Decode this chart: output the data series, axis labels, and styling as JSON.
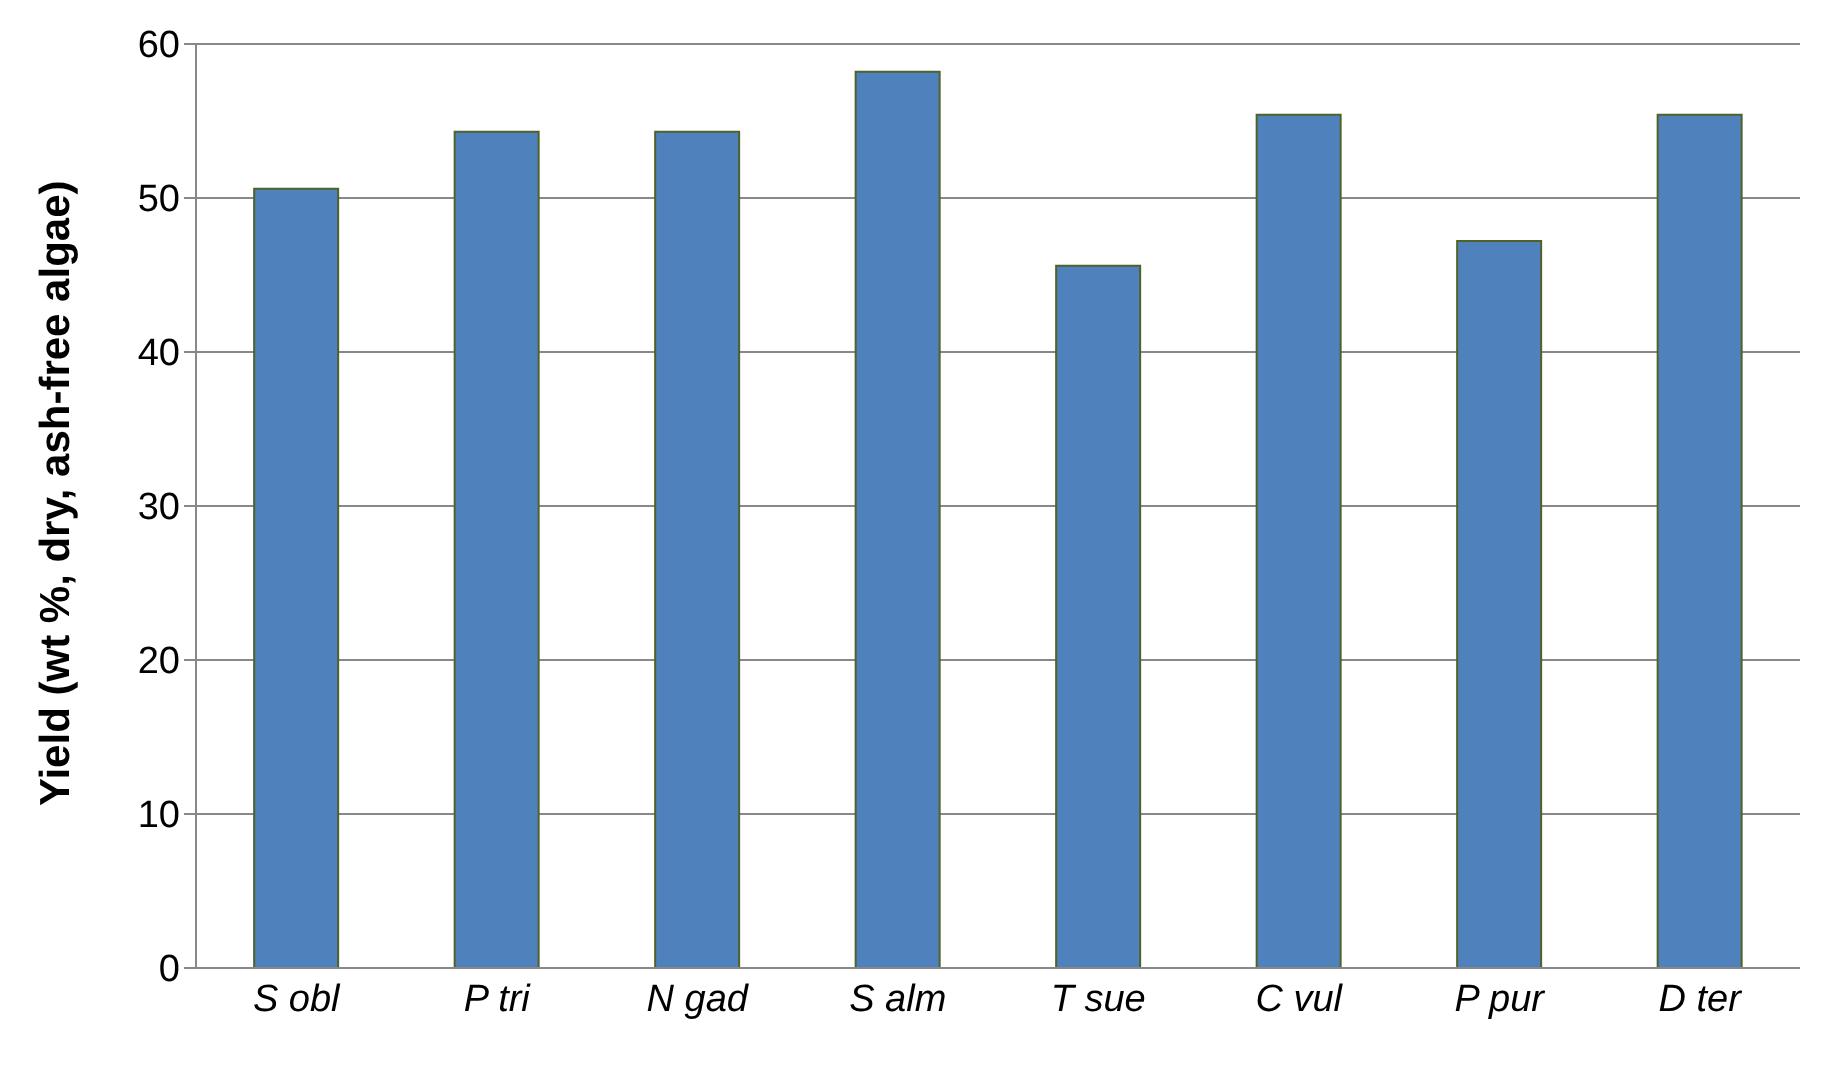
{
  "chart_data": {
    "type": "bar",
    "ylabel": "Yield (wt %, dry, ash-free algae)",
    "categories": [
      "S obl",
      "P tri",
      "N gad",
      "S alm",
      "T sue",
      "C vul",
      "P pur",
      "D ter"
    ],
    "values": [
      50.6,
      54.3,
      54.3,
      58.2,
      45.6,
      55.4,
      47.2,
      55.4
    ],
    "color": "#4f81bd",
    "ylim": [
      0,
      60
    ],
    "yticks": [
      0,
      10,
      20,
      30,
      40,
      50,
      60
    ],
    "grid": "y"
  }
}
